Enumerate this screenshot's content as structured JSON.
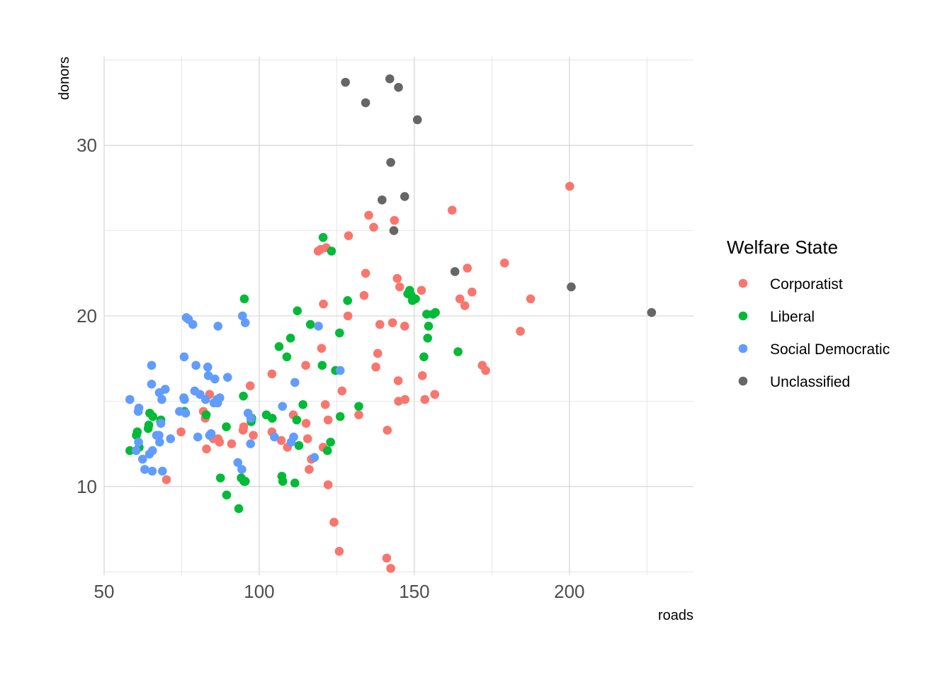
{
  "chart_data": {
    "type": "scatter",
    "xlabel": "roads",
    "ylabel": "donors",
    "xlim": [
      50,
      240
    ],
    "ylim": [
      4.8,
      35.2
    ],
    "x_ticks": [
      50,
      100,
      150,
      200
    ],
    "y_ticks": [
      10,
      20,
      30
    ],
    "grid": true,
    "legend": {
      "title": "Welfare State",
      "position": "right",
      "entries": [
        {
          "label": "Corporatist",
          "color": "#F8766D"
        },
        {
          "label": "Liberal",
          "color": "#00BA38"
        },
        {
          "label": "Social Democratic",
          "color": "#619CFF"
        },
        {
          "label": "Unclassified",
          "color": "#666666"
        }
      ]
    },
    "series": [
      {
        "name": "Corporatist",
        "color": "#F8766D",
        "points": [
          [
            70.1,
            10.4
          ],
          [
            74.8,
            13.2
          ],
          [
            82.0,
            14.4
          ],
          [
            82.6,
            14.0
          ],
          [
            83.0,
            12.2
          ],
          [
            84.0,
            15.4
          ],
          [
            85.2,
            12.8
          ],
          [
            86.7,
            12.8
          ],
          [
            87.2,
            12.6
          ],
          [
            91.1,
            12.5
          ],
          [
            94.8,
            13.3
          ],
          [
            95.0,
            13.5
          ],
          [
            97.1,
            15.9
          ],
          [
            98.1,
            13.0
          ],
          [
            104.1,
            16.6
          ],
          [
            104.1,
            13.2
          ],
          [
            107.1,
            12.7
          ],
          [
            109.1,
            12.3
          ],
          [
            111.0,
            14.2
          ],
          [
            115.0,
            17.1
          ],
          [
            115.1,
            13.7
          ],
          [
            115.6,
            12.8
          ],
          [
            116.1,
            11.0
          ],
          [
            116.8,
            11.6
          ],
          [
            119.0,
            23.8
          ],
          [
            119.8,
            23.9
          ],
          [
            120.1,
            18.1
          ],
          [
            120.6,
            12.3
          ],
          [
            120.7,
            20.7
          ],
          [
            121.3,
            14.8
          ],
          [
            121.6,
            24.0
          ],
          [
            122.2,
            13.9
          ],
          [
            122.2,
            10.1
          ],
          [
            124.1,
            7.9
          ],
          [
            125.8,
            6.2
          ],
          [
            126.7,
            15.6
          ],
          [
            128.6,
            20.0
          ],
          [
            128.8,
            24.7
          ],
          [
            132.1,
            14.2
          ],
          [
            133.8,
            21.2
          ],
          [
            134.3,
            22.5
          ],
          [
            135.3,
            25.9
          ],
          [
            136.9,
            25.2
          ],
          [
            137.6,
            17.0
          ],
          [
            138.2,
            17.8
          ],
          [
            138.9,
            19.5
          ],
          [
            141.1,
            5.8
          ],
          [
            141.3,
            13.3
          ],
          [
            142.4,
            5.2
          ],
          [
            143.0,
            19.6
          ],
          [
            143.6,
            25.6
          ],
          [
            144.5,
            22.2
          ],
          [
            144.8,
            16.2
          ],
          [
            144.9,
            15.0
          ],
          [
            145.3,
            21.7
          ],
          [
            146.9,
            19.4
          ],
          [
            147.0,
            15.1
          ],
          [
            152.3,
            21.5
          ],
          [
            152.6,
            16.5
          ],
          [
            153.4,
            15.1
          ],
          [
            156.6,
            15.4
          ],
          [
            162.2,
            26.2
          ],
          [
            164.7,
            21.0
          ],
          [
            166.3,
            20.6
          ],
          [
            167.1,
            22.8
          ],
          [
            168.6,
            21.4
          ],
          [
            171.9,
            17.1
          ],
          [
            173.0,
            16.8
          ],
          [
            179.1,
            23.1
          ],
          [
            184.2,
            19.1
          ],
          [
            187.5,
            21.0
          ],
          [
            200.1,
            27.6
          ]
        ]
      },
      {
        "name": "Liberal",
        "color": "#00BA38",
        "points": [
          [
            58.3,
            12.1
          ],
          [
            60.4,
            13.0
          ],
          [
            60.7,
            13.2
          ],
          [
            61.3,
            12.3
          ],
          [
            64.2,
            13.4
          ],
          [
            64.4,
            13.6
          ],
          [
            64.7,
            14.3
          ],
          [
            65.7,
            14.1
          ],
          [
            68.2,
            13.8
          ],
          [
            68.3,
            13.9
          ],
          [
            75.9,
            14.4
          ],
          [
            82.9,
            14.2
          ],
          [
            87.5,
            10.5
          ],
          [
            89.4,
            13.5
          ],
          [
            89.5,
            9.5
          ],
          [
            93.4,
            8.7
          ],
          [
            94.2,
            10.5
          ],
          [
            94.9,
            15.3
          ],
          [
            95.1,
            10.3
          ],
          [
            95.2,
            21.0
          ],
          [
            95.5,
            10.3
          ],
          [
            97.4,
            13.8
          ],
          [
            97.6,
            14.0
          ],
          [
            102.3,
            14.2
          ],
          [
            104.2,
            14.0
          ],
          [
            106.4,
            18.2
          ],
          [
            107.3,
            10.6
          ],
          [
            107.6,
            10.3
          ],
          [
            108.9,
            17.6
          ],
          [
            110.1,
            18.7
          ],
          [
            111.5,
            10.2
          ],
          [
            112.1,
            13.9
          ],
          [
            112.3,
            20.3
          ],
          [
            112.8,
            12.4
          ],
          [
            114.1,
            14.8
          ],
          [
            116.5,
            19.5
          ],
          [
            120.3,
            17.1
          ],
          [
            120.6,
            24.6
          ],
          [
            122.0,
            12.1
          ],
          [
            123.0,
            12.6
          ],
          [
            123.3,
            23.8
          ],
          [
            124.6,
            16.8
          ],
          [
            125.9,
            19.0
          ],
          [
            126.1,
            14.1
          ],
          [
            128.5,
            20.9
          ],
          [
            132.1,
            14.7
          ],
          [
            147.9,
            21.3
          ],
          [
            148.5,
            21.5
          ],
          [
            149.0,
            21.2
          ],
          [
            149.4,
            20.9
          ],
          [
            150.4,
            21.0
          ],
          [
            153.1,
            17.6
          ],
          [
            154.0,
            20.1
          ],
          [
            154.3,
            18.7
          ],
          [
            154.6,
            19.4
          ],
          [
            156.0,
            20.1
          ],
          [
            156.8,
            20.2
          ],
          [
            164.1,
            17.9
          ]
        ]
      },
      {
        "name": "Social Democratic",
        "color": "#619CFF",
        "points": [
          [
            58.3,
            15.1
          ],
          [
            60.3,
            12.1
          ],
          [
            61.0,
            14.4
          ],
          [
            61.2,
            14.6
          ],
          [
            61.1,
            12.6
          ],
          [
            62.4,
            11.6
          ],
          [
            63.1,
            11.0
          ],
          [
            64.6,
            11.9
          ],
          [
            65.3,
            17.1
          ],
          [
            65.3,
            16.0
          ],
          [
            65.5,
            10.9
          ],
          [
            65.6,
            12.1
          ],
          [
            66.9,
            13.0
          ],
          [
            67.7,
            13.0
          ],
          [
            67.9,
            12.6
          ],
          [
            67.8,
            15.5
          ],
          [
            68.3,
            13.7
          ],
          [
            68.6,
            15.1
          ],
          [
            68.8,
            10.9
          ],
          [
            69.7,
            15.7
          ],
          [
            71.4,
            12.8
          ],
          [
            74.3,
            14.4
          ],
          [
            75.7,
            15.2
          ],
          [
            75.8,
            17.6
          ],
          [
            75.9,
            15.1
          ],
          [
            76.3,
            14.3
          ],
          [
            76.5,
            19.9
          ],
          [
            77.2,
            19.8
          ],
          [
            78.6,
            19.5
          ],
          [
            79.2,
            15.6
          ],
          [
            79.6,
            17.1
          ],
          [
            80.2,
            12.9
          ],
          [
            80.9,
            15.4
          ],
          [
            82.7,
            15.1
          ],
          [
            83.4,
            17.0
          ],
          [
            83.6,
            16.5
          ],
          [
            84.0,
            13.0
          ],
          [
            84.5,
            13.1
          ],
          [
            85.4,
            14.9
          ],
          [
            85.7,
            16.3
          ],
          [
            86.4,
            15.1
          ],
          [
            86.6,
            14.9
          ],
          [
            86.7,
            19.4
          ],
          [
            87.3,
            15.2
          ],
          [
            89.8,
            16.4
          ],
          [
            93.1,
            11.4
          ],
          [
            94.4,
            11.0
          ],
          [
            94.6,
            20.0
          ],
          [
            95.5,
            19.6
          ],
          [
            96.4,
            14.3
          ],
          [
            97.2,
            12.5
          ],
          [
            97.3,
            14.0
          ],
          [
            104.9,
            12.9
          ],
          [
            107.5,
            14.7
          ],
          [
            110.3,
            12.6
          ],
          [
            111.1,
            12.9
          ],
          [
            111.5,
            16.1
          ],
          [
            117.8,
            11.7
          ],
          [
            119.1,
            19.4
          ],
          [
            126.1,
            16.8
          ]
        ]
      },
      {
        "name": "Unclassified",
        "color": "#666666",
        "points": [
          [
            127.8,
            33.7
          ],
          [
            134.3,
            32.5
          ],
          [
            139.6,
            26.8
          ],
          [
            142.1,
            33.9
          ],
          [
            142.4,
            29.0
          ],
          [
            143.4,
            25.0
          ],
          [
            144.9,
            33.4
          ],
          [
            146.9,
            27.0
          ],
          [
            151.0,
            31.5
          ],
          [
            163.1,
            22.6
          ],
          [
            200.6,
            21.7
          ],
          [
            226.5,
            20.2
          ]
        ]
      }
    ]
  }
}
